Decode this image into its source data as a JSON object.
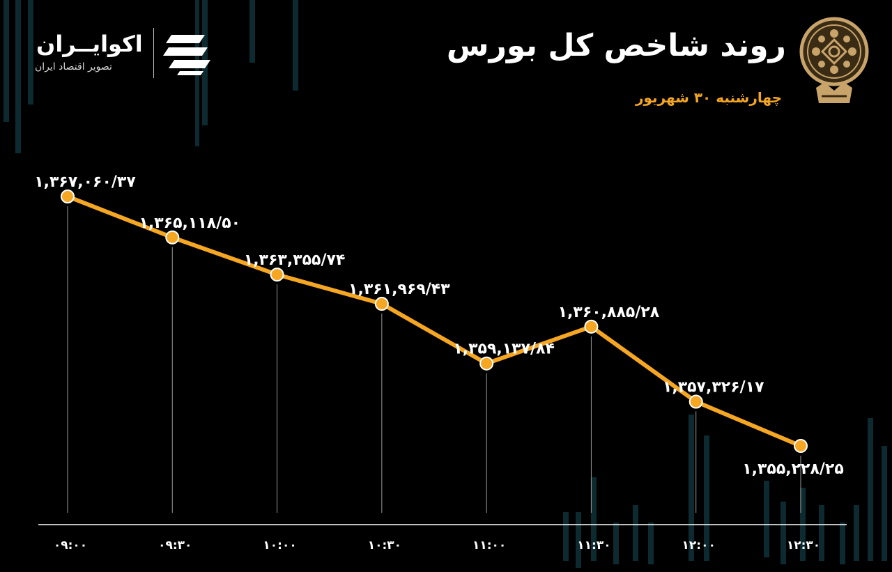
{
  "header": {
    "title": "روند شاخص کل بورس",
    "subtitle": "چهارشنبه ۳۰ شهریور"
  },
  "brand": {
    "name": "اکوایــران",
    "tagline": "تصویر اقتصاد ایران"
  },
  "icons": {
    "brand_logo": "ecoiran-logo-icon",
    "exchange_emblem": "tehran-stock-exchange-emblem-icon"
  },
  "colors": {
    "background": "#000000",
    "line": "#f5a623",
    "point_fill": "#f5a623",
    "point_stroke": "#ffffff",
    "text": "#ffffff",
    "background_bars": "#0c2a2f"
  },
  "chart_data": {
    "type": "line",
    "x": [
      "۰۹:۰۰",
      "۰۹:۳۰",
      "۱۰:۰۰",
      "۱۰:۳۰",
      "۱۱:۰۰",
      "۱۱:۳۰",
      "۱۲:۰۰",
      "۱۲:۳۰"
    ],
    "values": [
      1367060.37,
      1365118.5,
      1363355.74,
      1361969.43,
      1359137.84,
      1360885.28,
      1357326.17,
      1355228.25
    ],
    "data_labels": [
      "۱,۳۶۷,۰۶۰/۳۷",
      "۱,۳۶۵,۱۱۸/۵۰",
      "۱,۳۶۳,۳۵۵/۷۴",
      "۱,۳۶۱,۹۶۹/۴۳",
      "۱,۳۵۹,۱۳۷/۸۴",
      "۱,۳۶۰,۸۸۵/۲۸",
      "۱,۳۵۷,۳۲۶/۱۷",
      "۱,۳۵۵,۲۲۸/۲۵"
    ],
    "title": "روند شاخص کل بورس",
    "xlabel": "",
    "ylabel": "",
    "grid": false,
    "legend": "none"
  }
}
